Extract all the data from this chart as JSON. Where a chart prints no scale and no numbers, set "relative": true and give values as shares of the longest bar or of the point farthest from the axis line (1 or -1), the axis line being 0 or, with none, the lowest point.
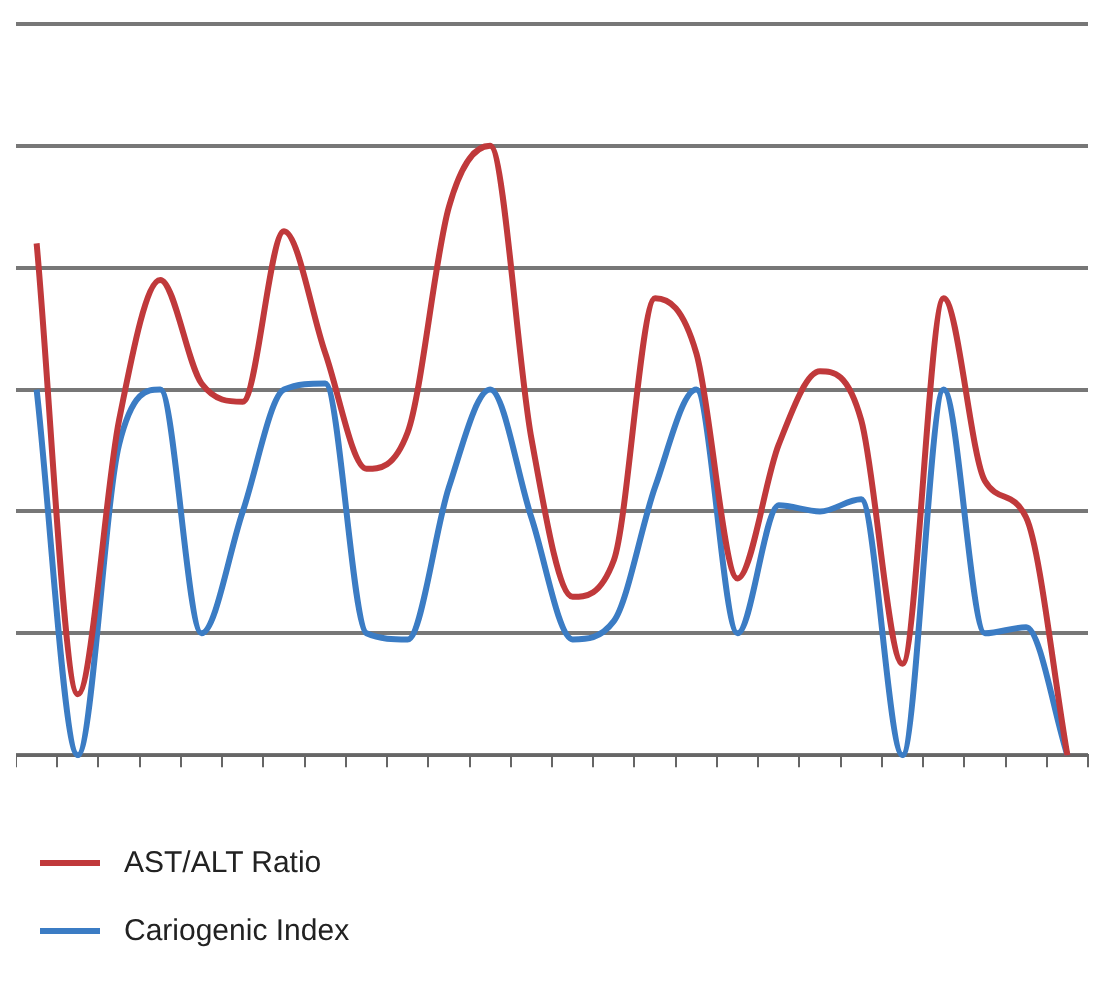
{
  "chart_data": {
    "type": "line",
    "relative": true,
    "grid": "y",
    "legend": "bottom left",
    "marker": "none",
    "line_style": "solid",
    "categories": [
      null,
      null,
      null,
      null,
      null,
      null,
      null,
      null,
      null,
      null,
      null,
      null,
      null,
      null,
      null,
      null,
      null,
      null,
      null,
      null,
      null,
      null,
      null,
      null,
      null,
      null
    ],
    "series": [
      {
        "name": "AST/ALT Ratio",
        "color": "#c0393b",
        "values": [
          0.84,
          0.1,
          0.55,
          0.78,
          0.61,
          0.58,
          0.86,
          0.66,
          0.47,
          0.53,
          0.9,
          1.0,
          0.52,
          0.26,
          0.32,
          0.75,
          0.66,
          0.29,
          0.51,
          0.63,
          0.55,
          0.15,
          0.75,
          0.45,
          0.39,
          0
        ]
      },
      {
        "name": "Cariogenic Index",
        "color": "#3b7cc4",
        "values": [
          0.6,
          0,
          0.51,
          0.6,
          0.2,
          0.4,
          0.6,
          0.61,
          0.2,
          0.19,
          0.44,
          0.6,
          0.39,
          0.19,
          0.22,
          0.44,
          0.6,
          0.2,
          0.41,
          0.4,
          0.42,
          0,
          0.6,
          0.2,
          0.21,
          0
        ]
      }
    ]
  }
}
